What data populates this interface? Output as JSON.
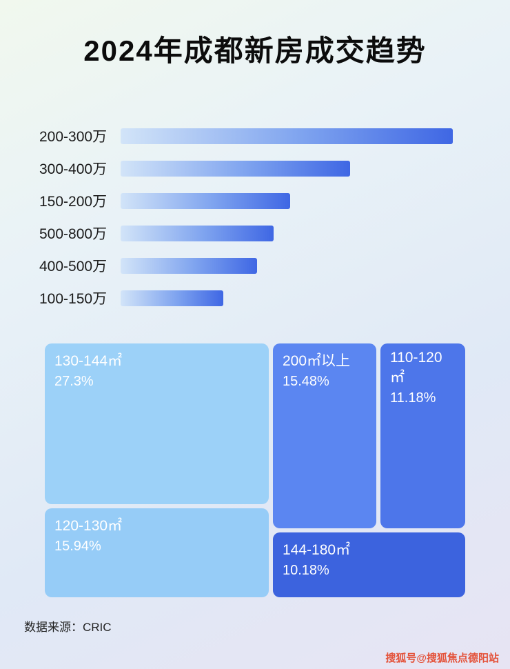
{
  "page": {
    "title": "2024年成都新房成交趋势",
    "source_label": "数据来源：CRIC",
    "watermark": "搜狐号@搜狐焦点德阳站"
  },
  "colors": {
    "bar_gradient_start": "#d2e4f8",
    "bar_gradient_end": "#3f67e4",
    "watermark_red": "#e4523a"
  },
  "chart_data": [
    {
      "type": "bar",
      "orientation": "horizontal",
      "title": "2024年成都新房成交趋势",
      "categories": [
        "200-300万",
        "300-400万",
        "150-200万",
        "500-800万",
        "400-500万",
        "100-150万"
      ],
      "values": [
        100,
        69,
        51,
        46,
        41,
        31
      ],
      "value_scale": "relative bar length, % of longest bar (no numeric axis shown)",
      "xlabel": "",
      "ylabel": "",
      "grid": false,
      "legend": false
    },
    {
      "type": "treemap",
      "items": [
        {
          "label": "130-144㎡",
          "value": 27.3,
          "value_pct": "27.3%",
          "color": "#9cd1f8"
        },
        {
          "label": "120-130㎡",
          "value": 15.94,
          "value_pct": "15.94%",
          "color": "#96ccf7"
        },
        {
          "label": "200㎡以上",
          "value": 15.48,
          "value_pct": "15.48%",
          "color": "#5b86f1"
        },
        {
          "label": "110-120㎡",
          "value": 11.18,
          "value_pct": "11.18%",
          "color": "#4d76ea"
        },
        {
          "label": "144-180㎡",
          "value": 10.18,
          "value_pct": "10.18%",
          "color": "#3c63de"
        }
      ],
      "legend": false
    }
  ]
}
